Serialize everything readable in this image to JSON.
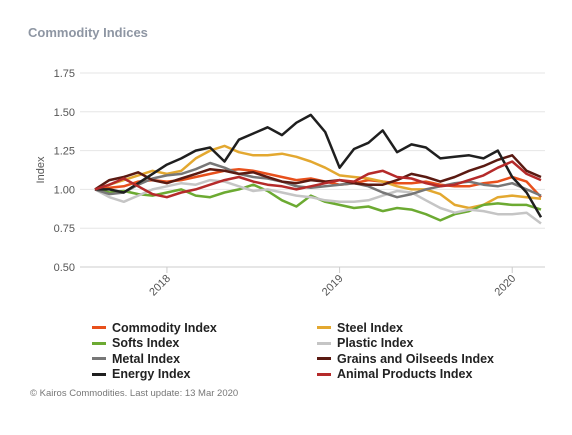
{
  "title": "Commodity Indices",
  "footer": "© Kairos Commodities. Last update: 13 Mar 2020",
  "chart_data": {
    "type": "line",
    "ylabel": "Index",
    "ylim": [
      0.5,
      1.75
    ],
    "yticks": [
      "0.50",
      "0.75",
      "1.00",
      "1.25",
      "1.50",
      "1.75"
    ],
    "xticks": [
      "2018",
      "2019",
      "2020"
    ],
    "x": [
      "2017-08",
      "2017-09",
      "2017-10",
      "2017-11",
      "2017-12",
      "2018-01",
      "2018-02",
      "2018-03",
      "2018-04",
      "2018-05",
      "2018-06",
      "2018-07",
      "2018-08",
      "2018-09",
      "2018-10",
      "2018-11",
      "2018-12",
      "2019-01",
      "2019-02",
      "2019-03",
      "2019-04",
      "2019-05",
      "2019-06",
      "2019-07",
      "2019-08",
      "2019-09",
      "2019-10",
      "2019-11",
      "2019-12",
      "2020-01",
      "2020-02",
      "2020-03"
    ],
    "grid": true,
    "legend_position": "bottom",
    "series": [
      {
        "name": "Commodity Index",
        "color": "#e8501c",
        "values": [
          1.0,
          1.01,
          1.02,
          1.05,
          1.06,
          1.05,
          1.06,
          1.08,
          1.1,
          1.12,
          1.13,
          1.12,
          1.1,
          1.08,
          1.06,
          1.07,
          1.05,
          1.03,
          1.04,
          1.06,
          1.05,
          1.04,
          1.04,
          1.05,
          1.03,
          1.02,
          1.02,
          1.04,
          1.05,
          1.08,
          1.05,
          0.95
        ]
      },
      {
        "name": "Steel Index",
        "color": "#e3a830",
        "values": [
          1.0,
          1.03,
          1.06,
          1.09,
          1.12,
          1.1,
          1.12,
          1.2,
          1.25,
          1.28,
          1.24,
          1.22,
          1.22,
          1.23,
          1.21,
          1.18,
          1.14,
          1.09,
          1.08,
          1.07,
          1.05,
          1.02,
          1.0,
          1.0,
          0.97,
          0.9,
          0.88,
          0.9,
          0.95,
          0.96,
          0.95,
          0.94
        ]
      },
      {
        "name": "Softs Index",
        "color": "#6caa32",
        "values": [
          1.0,
          0.98,
          0.99,
          0.97,
          0.96,
          0.98,
          1.0,
          0.96,
          0.95,
          0.98,
          1.0,
          1.03,
          0.99,
          0.93,
          0.89,
          0.96,
          0.92,
          0.9,
          0.88,
          0.89,
          0.86,
          0.88,
          0.87,
          0.84,
          0.8,
          0.84,
          0.86,
          0.9,
          0.91,
          0.9,
          0.9,
          0.87
        ]
      },
      {
        "name": "Plastic Index",
        "color": "#c5c5c5",
        "values": [
          1.0,
          0.95,
          0.92,
          0.96,
          1.0,
          1.02,
          1.04,
          1.03,
          1.06,
          1.05,
          1.02,
          0.99,
          1.0,
          0.98,
          0.96,
          0.95,
          0.93,
          0.92,
          0.92,
          0.93,
          0.96,
          0.99,
          0.98,
          0.93,
          0.88,
          0.85,
          0.87,
          0.86,
          0.84,
          0.84,
          0.85,
          0.78
        ]
      },
      {
        "name": "Metal Index",
        "color": "#777777",
        "values": [
          1.0,
          0.97,
          0.98,
          1.03,
          1.07,
          1.09,
          1.1,
          1.13,
          1.17,
          1.14,
          1.1,
          1.08,
          1.07,
          1.05,
          1.02,
          1.01,
          1.02,
          1.03,
          1.04,
          1.02,
          0.98,
          0.95,
          0.97,
          1.0,
          1.02,
          1.04,
          1.05,
          1.03,
          1.02,
          1.04,
          1.0,
          0.96
        ]
      },
      {
        "name": "Grains and Oilseeds Index",
        "color": "#5a1a12",
        "values": [
          1.0,
          1.06,
          1.08,
          1.11,
          1.06,
          1.04,
          1.07,
          1.1,
          1.13,
          1.12,
          1.1,
          1.11,
          1.08,
          1.05,
          1.04,
          1.06,
          1.05,
          1.06,
          1.04,
          1.03,
          1.03,
          1.06,
          1.1,
          1.08,
          1.05,
          1.08,
          1.12,
          1.15,
          1.19,
          1.22,
          1.12,
          1.08
        ]
      },
      {
        "name": "Energy Index",
        "color": "#1f1f1f",
        "values": [
          1.0,
          1.0,
          0.98,
          1.04,
          1.1,
          1.16,
          1.2,
          1.25,
          1.27,
          1.18,
          1.32,
          1.36,
          1.4,
          1.35,
          1.43,
          1.48,
          1.37,
          1.14,
          1.26,
          1.3,
          1.38,
          1.24,
          1.29,
          1.27,
          1.2,
          1.21,
          1.22,
          1.2,
          1.25,
          1.08,
          0.98,
          0.82
        ]
      },
      {
        "name": "Animal Products Index",
        "color": "#b52a2a",
        "values": [
          1.0,
          1.03,
          1.07,
          1.02,
          0.97,
          0.95,
          0.98,
          1.0,
          1.03,
          1.06,
          1.08,
          1.05,
          1.03,
          1.02,
          1.0,
          1.02,
          1.04,
          1.06,
          1.05,
          1.1,
          1.12,
          1.08,
          1.07,
          1.04,
          1.02,
          1.03,
          1.06,
          1.09,
          1.14,
          1.18,
          1.1,
          1.06
        ]
      }
    ]
  }
}
